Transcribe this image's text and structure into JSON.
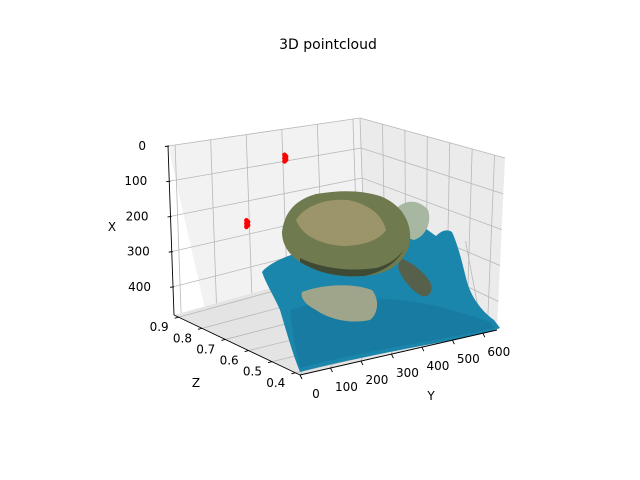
{
  "chart_data": {
    "type": "scatter",
    "projection": "3d",
    "title": "3D pointcloud",
    "xlabel": "X",
    "ylabel": "Y",
    "zlabel": "Z",
    "xlim": [
      0,
      480
    ],
    "ylim": [
      0,
      640
    ],
    "zlim": [
      0.38,
      0.92
    ],
    "x_ticks": [
      0,
      100,
      200,
      300,
      400
    ],
    "y_ticks": [
      0,
      100,
      200,
      300,
      400,
      500,
      600
    ],
    "z_ticks": [
      0.4,
      0.5,
      0.6,
      0.7,
      0.8,
      0.9
    ],
    "x_tick_labels": [
      "0",
      "100",
      "200",
      "300",
      "400"
    ],
    "y_tick_labels": [
      "0",
      "100",
      "200",
      "300",
      "400",
      "500",
      "600"
    ],
    "z_tick_labels": [
      "0.4",
      "0.5",
      "0.6",
      "0.7",
      "0.8",
      "0.9"
    ],
    "grid": true,
    "colors": {
      "water": "#1a86ab",
      "turtle_shell": "#6f7a4e",
      "turtle_skin": "#b8b48c",
      "highlight_points": "#ff0000"
    },
    "highlight_points": [
      {
        "x": 20,
        "y": 270,
        "z": 0.62
      },
      {
        "x": 230,
        "y": 180,
        "z": 0.7
      }
    ]
  }
}
